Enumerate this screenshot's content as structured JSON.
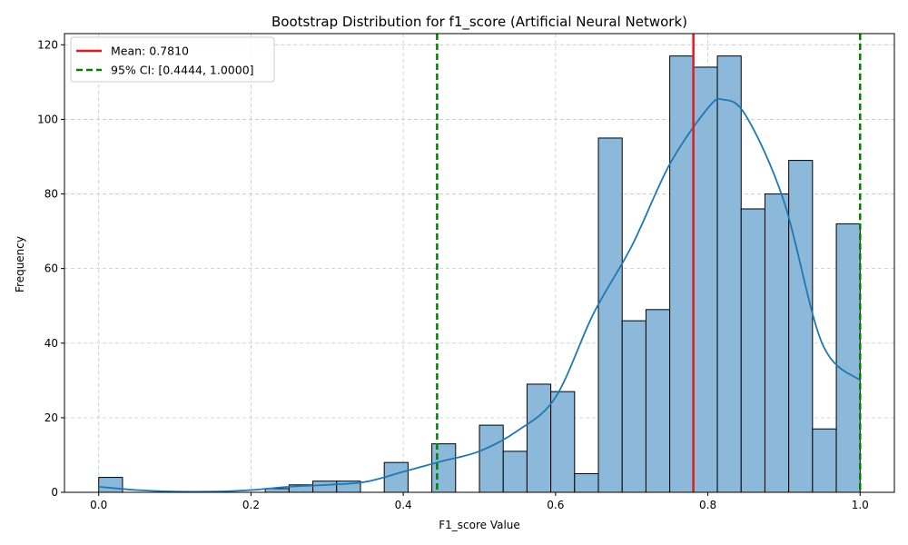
{
  "chart_data": {
    "type": "bar",
    "title": "Bootstrap Distribution for f1_score (Artificial Neural Network)",
    "xlabel": "F1_score Value",
    "ylabel": "Frequency",
    "xlim": [
      -0.045,
      1.045
    ],
    "ylim": [
      0,
      123
    ],
    "xticks": [
      0.0,
      0.2,
      0.4,
      0.6,
      0.8,
      1.0
    ],
    "xtick_labels": [
      "0.0",
      "0.2",
      "0.4",
      "0.6",
      "0.8",
      "1.0"
    ],
    "yticks": [
      0,
      20,
      40,
      60,
      80,
      100,
      120
    ],
    "ytick_labels": [
      "0",
      "20",
      "40",
      "60",
      "80",
      "100",
      "120"
    ],
    "grid": true,
    "bin_width": 0.03125,
    "bin_start": 0.0,
    "bars": [
      4,
      0,
      0,
      0,
      0,
      0,
      0,
      1,
      2,
      3,
      3,
      0,
      8,
      0,
      13,
      0,
      18,
      11,
      29,
      27,
      5,
      95,
      46,
      49,
      117,
      114,
      117,
      76,
      80,
      89,
      17,
      72
    ],
    "bar_color": "#8cb8d9",
    "kde": {
      "x": [
        0.0,
        0.05,
        0.1,
        0.15,
        0.2,
        0.25,
        0.3,
        0.35,
        0.4,
        0.45,
        0.5,
        0.55,
        0.6,
        0.65,
        0.7,
        0.75,
        0.8,
        0.82,
        0.85,
        0.9,
        0.95,
        1.0
      ],
      "y": [
        1.5,
        0.6,
        0.2,
        0.2,
        0.6,
        1.5,
        2.0,
        2.8,
        5.5,
        8.3,
        11.0,
        16.5,
        25.5,
        48.0,
        66.0,
        88.0,
        103.0,
        105.3,
        101.0,
        78.0,
        40.0,
        30.0
      ],
      "color": "#1f77b4"
    },
    "lines": [
      {
        "x": 0.781,
        "label": "Mean: 0.7810",
        "color": "#e41a1c",
        "style": "solid"
      },
      {
        "x": 0.4444,
        "label": "95% CI: [0.4444, 1.0000]",
        "color": "#008000",
        "style": "dashed"
      },
      {
        "x": 1.0,
        "label": "",
        "color": "#008000",
        "style": "dashed"
      }
    ],
    "legend": {
      "position": "top-left",
      "entries": [
        {
          "label": "Mean: 0.7810",
          "color": "#e41a1c",
          "style": "solid"
        },
        {
          "label": "95% CI: [0.4444, 1.0000]",
          "color": "#008000",
          "style": "dashed"
        }
      ]
    }
  }
}
